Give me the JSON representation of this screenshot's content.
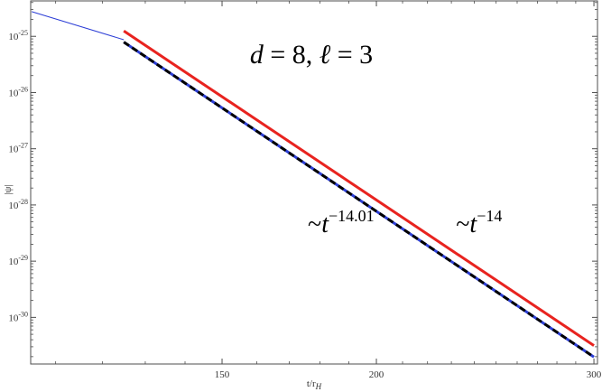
{
  "chart_data": {
    "type": "line",
    "title": "",
    "xlabel": {
      "base": "t/r",
      "sub": "H"
    },
    "ylabel": "|ψ|",
    "xscale": "log",
    "yscale": "log",
    "xlim": [
      105,
      302
    ],
    "ylim": [
      1.48e-31,
      4.27e-25
    ],
    "grid": false,
    "frame": true,
    "x_ticks": [
      150,
      200,
      300
    ],
    "x_tick_labels": [
      "150",
      "200",
      "300"
    ],
    "y_ticks": [
      1e-30,
      1e-29,
      1e-28,
      1e-27,
      1e-26,
      1e-25
    ],
    "y_tick_labels": [
      {
        "base": "10",
        "exp": "-30"
      },
      {
        "base": "10",
        "exp": "-29"
      },
      {
        "base": "10",
        "exp": "-28"
      },
      {
        "base": "10",
        "exp": "-27"
      },
      {
        "base": "10",
        "exp": "-26"
      },
      {
        "base": "10",
        "exp": "-25"
      }
    ],
    "series": [
      {
        "style": "thin-solid",
        "color": "#2c3ed6",
        "x": [
          105.2,
          124.9
        ],
        "y": [
          2.75e-25,
          8.7e-26
        ]
      },
      {
        "style": "thick-solid",
        "color": "#e8231f",
        "x": [
          124.9,
          300
        ],
        "y": [
          1.25e-25,
          3.15e-31
        ]
      },
      {
        "style": "dashed-on-blue",
        "color": "#000000",
        "underlay": "#2c3ed6",
        "x": [
          124.9,
          300
        ],
        "y": [
          7.9e-26,
          1.97e-31
        ]
      }
    ],
    "annotations": {
      "params": {
        "parts": [
          "d",
          " = 8, ",
          "ℓ",
          " = 3"
        ]
      },
      "fit_left": {
        "prefix": "~",
        "var": "t",
        "exp": "−14.01",
        "x": 176,
        "y": 3.3e-29
      },
      "fit_right": {
        "prefix": "~",
        "var": "t",
        "exp": "−14",
        "x": 232,
        "y": 3.3e-29
      }
    }
  }
}
